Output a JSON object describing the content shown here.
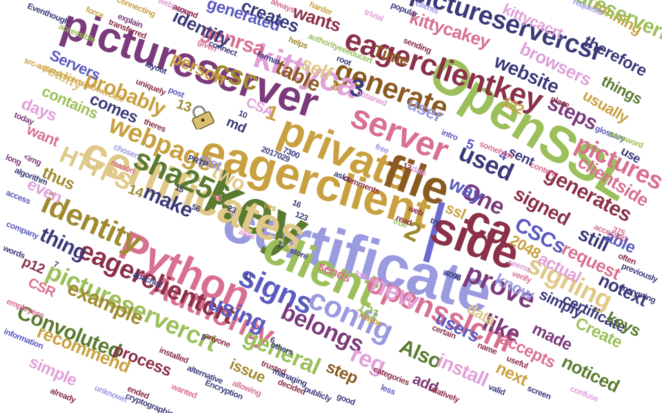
{
  "colors": {
    "purple": "#7b3a7b",
    "navy": "#3a3a7a",
    "green": "#9bbf5a",
    "olive": "#a08a30",
    "gold": "#c8a040",
    "tan": "#e0c888",
    "lavender": "#9a9ae0",
    "pink": "#e0a0d8",
    "rose": "#d87090",
    "maroon": "#8a3048",
    "darkgreen": "#5a7a30",
    "blue": "#5a5ac0",
    "brown": "#8a5a20"
  },
  "words": [
    {
      "t": "certificate",
      "c": "lavender"
    },
    {
      "t": "key",
      "c": "darkgreen"
    },
    {
      "t": "eagerclient",
      "c": "gold"
    },
    {
      "t": "certificates",
      "c": "tan"
    },
    {
      "t": "pictureserver",
      "c": "purple"
    },
    {
      "t": "OpenSSL",
      "c": "green"
    },
    {
      "t": "private",
      "c": "gold"
    },
    {
      "t": "file",
      "c": "brown"
    },
    {
      "t": "client",
      "c": "green"
    },
    {
      "t": "side",
      "c": "maroon"
    },
    {
      "t": "ca",
      "c": "maroon"
    },
    {
      "t": "server",
      "c": "rose"
    },
    {
      "t": "Python",
      "c": "rose"
    },
    {
      "t": "eagerclientkey",
      "c": "maroon"
    },
    {
      "t": "pictureservercsr",
      "c": "navy"
    },
    {
      "t": "generate",
      "c": "brown"
    },
    {
      "t": "sha256",
      "c": "darkgreen"
    },
    {
      "t": "kittyca",
      "c": "pink"
    },
    {
      "t": "identity",
      "c": "olive"
    },
    {
      "t": "csc",
      "c": "olive"
    },
    {
      "t": "Authority",
      "c": "rose"
    },
    {
      "t": "signs",
      "c": "blue"
    },
    {
      "t": "config",
      "c": "lavender"
    },
    {
      "t": "eagerclientcrt",
      "c": "maroon"
    },
    {
      "t": "pictureservercrt",
      "c": "green"
    },
    {
      "t": "opensslcnf",
      "c": "rose"
    },
    {
      "t": "prove",
      "c": "purple"
    },
    {
      "t": "signing",
      "c": "tan"
    },
    {
      "t": "webpage",
      "c": "gold"
    },
    {
      "t": "HTTPS",
      "c": "tan"
    },
    {
      "t": "genrsa",
      "c": "rose"
    },
    {
      "t": "generated",
      "c": "blue"
    },
    {
      "t": "kittycakey",
      "c": "rose"
    },
    {
      "t": "website",
      "c": "navy"
    },
    {
      "t": "probably",
      "c": "gold"
    },
    {
      "t": "example",
      "c": "olive"
    },
    {
      "t": "Convoluted",
      "c": "darkgreen"
    },
    {
      "t": "new",
      "c": "pink"
    },
    {
      "t": "used",
      "c": "navy"
    },
    {
      "t": "One",
      "c": "purple"
    },
    {
      "t": "belongs",
      "c": "purple"
    },
    {
      "t": "reg",
      "c": "pink"
    },
    {
      "t": "using",
      "c": "blue"
    },
    {
      "t": "general",
      "c": "green"
    },
    {
      "t": "Also",
      "c": "darkgreen"
    },
    {
      "t": "install",
      "c": "pink"
    },
    {
      "t": "pictures",
      "c": "rose"
    },
    {
      "t": "generates",
      "c": "maroon"
    },
    {
      "t": "steps",
      "c": "purple"
    },
    {
      "t": "usually",
      "c": "gold"
    },
    {
      "t": "table",
      "c": "brown"
    },
    {
      "t": "self",
      "c": "tan"
    },
    {
      "t": "wants",
      "c": "maroon"
    },
    {
      "t": "creates",
      "c": "navy"
    },
    {
      "t": "person",
      "c": "gold"
    },
    {
      "t": "identify",
      "c": "navy"
    },
    {
      "t": "Time",
      "c": "brown"
    },
    {
      "t": "user",
      "c": "lavender"
    },
    {
      "t": "things",
      "c": "darkgreen"
    },
    {
      "t": "therefore",
      "c": "navy"
    },
    {
      "t": "browsers",
      "c": "pink"
    },
    {
      "t": "running",
      "c": "gold"
    },
    {
      "t": "pictureserverkey",
      "c": "green"
    },
    {
      "t": "kittycacrt",
      "c": "pink"
    },
    {
      "t": "clientside",
      "c": "rose"
    },
    {
      "t": "signed",
      "c": "maroon"
    },
    {
      "t": "way",
      "c": "blue"
    },
    {
      "t": "CSCs",
      "c": "blue"
    },
    {
      "t": "still",
      "c": "navy"
    },
    {
      "t": "able",
      "c": "blue"
    },
    {
      "t": "request",
      "c": "rose"
    },
    {
      "t": "actual",
      "c": "pink"
    },
    {
      "t": "know",
      "c": "lavender"
    },
    {
      "t": "like",
      "c": "purple"
    },
    {
      "t": "certificate",
      "c": "navy"
    },
    {
      "t": "simply",
      "c": "navy"
    },
    {
      "t": "made",
      "c": "purple"
    },
    {
      "t": "Create",
      "c": "green"
    },
    {
      "t": "keys",
      "c": "darkgreen"
    },
    {
      "t": "notext",
      "c": "navy"
    },
    {
      "t": "accepts",
      "c": "rose"
    },
    {
      "t": "next",
      "c": "gold"
    },
    {
      "t": "noticed",
      "c": "darkgreen"
    },
    {
      "t": "users",
      "c": "blue"
    },
    {
      "t": "data",
      "c": "tan"
    },
    {
      "t": "add",
      "c": "purple"
    },
    {
      "t": "step",
      "c": "brown"
    },
    {
      "t": "issue",
      "c": "olive"
    },
    {
      "t": "process",
      "c": "maroon"
    },
    {
      "t": "recommend",
      "c": "gold"
    },
    {
      "t": "simple",
      "c": "pink"
    },
    {
      "t": "make",
      "c": "navy"
    },
    {
      "t": "two",
      "c": "tan"
    },
    {
      "t": "thing",
      "c": "navy"
    },
    {
      "t": "even",
      "c": "pink"
    },
    {
      "t": "thus",
      "c": "olive"
    },
    {
      "t": "want",
      "c": "rose"
    },
    {
      "t": "days",
      "c": "pink"
    },
    {
      "t": "contains",
      "c": "green"
    },
    {
      "t": "comes",
      "c": "navy"
    },
    {
      "t": "reality",
      "c": "tan"
    },
    {
      "t": "Servers",
      "c": "blue"
    },
    {
      "t": "CSR",
      "c": "rose"
    },
    {
      "t": "p12",
      "c": "maroon"
    },
    {
      "t": "sends",
      "c": "rose"
    },
    {
      "t": "gist",
      "c": "lavender"
    },
    {
      "t": "md",
      "c": "navy"
    },
    {
      "t": "CSA",
      "c": "pink"
    },
    {
      "t": "ssl",
      "c": "gold"
    },
    {
      "t": "use",
      "c": "navy"
    },
    {
      "t": "sent",
      "c": "navy"
    },
    {
      "t": "2048",
      "c": "gold"
    },
    {
      "t": "122",
      "c": "gold"
    },
    {
      "t": "121",
      "c": "green"
    },
    {
      "t": "1",
      "c": "gold"
    },
    {
      "t": "2",
      "c": "olive"
    },
    {
      "t": "3",
      "c": "navy"
    },
    {
      "t": "4",
      "c": "blue"
    },
    {
      "t": "5",
      "c": "blue"
    },
    {
      "t": "8",
      "c": "gold"
    },
    {
      "t": "13",
      "c": "olive"
    },
    {
      "t": "14",
      "c": "olive"
    },
    {
      "t": "Eventhough",
      "c": "navy"
    },
    {
      "t": "force",
      "c": "gold"
    },
    {
      "t": "explain",
      "c": "purple"
    },
    {
      "t": "transferred",
      "c": "maroon"
    },
    {
      "t": "webpages",
      "c": "pink"
    },
    {
      "t": "around",
      "c": "maroon"
    },
    {
      "t": "connecting",
      "c": "gold"
    },
    {
      "t": "given",
      "c": "rose"
    },
    {
      "t": "connect",
      "c": "navy"
    },
    {
      "t": "always",
      "c": "rose"
    },
    {
      "t": "harder",
      "c": "gold"
    },
    {
      "t": "helps",
      "c": "olive"
    },
    {
      "t": "popular",
      "c": "navy"
    },
    {
      "t": "trivial",
      "c": "pink"
    },
    {
      "t": "clients",
      "c": "lavender"
    },
    {
      "t": "sending",
      "c": "maroon"
    },
    {
      "t": "requests",
      "c": "lavender"
    },
    {
      "t": "authorityeeeducert",
      "c": "green"
    },
    {
      "t": "format",
      "c": "navy"
    },
    {
      "t": "root",
      "c": "navy"
    },
    {
      "t": "place",
      "c": "maroon"
    },
    {
      "t": "obtained",
      "c": "pink"
    },
    {
      "t": "glossary",
      "c": "blue"
    },
    {
      "t": "password",
      "c": "green"
    },
    {
      "t": "accessible",
      "c": "green"
    },
    {
      "t": "src-assetsimcertsislowercicle",
      "c": "gold"
    },
    {
      "t": "uniquely",
      "c": "maroon"
    },
    {
      "t": "post",
      "c": "blue"
    },
    {
      "t": "layout",
      "c": "navy"
    },
    {
      "t": "today",
      "c": "purple"
    },
    {
      "t": "theres",
      "c": "maroon"
    },
    {
      "t": "<img",
      "c": "purple"
    },
    {
      "t": "chosen",
      "c": "lavender"
    },
    {
      "t": "reason",
      "c": "rose"
    },
    {
      "t": "long",
      "c": "purple"
    },
    {
      "t": "algorithm",
      "c": "navy"
    },
    {
      "t": "access",
      "c": "blue"
    },
    {
      "t": "company",
      "c": "blue"
    },
    {
      "t": "words",
      "c": "navy"
    },
    {
      "t": "employees",
      "c": "rose"
    },
    {
      "t": "information",
      "c": "blue"
    },
    {
      "t": "already",
      "c": "maroon"
    },
    {
      "t": "unknown",
      "c": "lavender"
    },
    {
      "t": "ended",
      "c": "maroon"
    },
    {
      "t": "cryptographic",
      "c": "navy"
    },
    {
      "t": "wanted",
      "c": "rose"
    },
    {
      "t": "Encryption",
      "c": "navy"
    },
    {
      "t": "allowing",
      "c": "rose"
    },
    {
      "t": "decided",
      "c": "maroon"
    },
    {
      "t": "publicly",
      "c": "navy"
    },
    {
      "t": "good",
      "c": "navy"
    },
    {
      "t": "less",
      "c": "blue"
    },
    {
      "t": "relatively",
      "c": "maroon"
    },
    {
      "t": "valid",
      "c": "navy"
    },
    {
      "t": "screen",
      "c": "navy"
    },
    {
      "t": "confuse",
      "c": "pink"
    },
    {
      "t": "somehow",
      "c": "rose"
    },
    {
      "t": "intro",
      "c": "blue"
    },
    {
      "t": "375",
      "c": "rose"
    },
    {
      "t": "often",
      "c": "maroon"
    },
    {
      "t": "encrypting",
      "c": "navy"
    },
    {
      "t": "previously",
      "c": "navy"
    },
    {
      "t": "accessed",
      "c": "rose"
    },
    {
      "t": "content",
      "c": "rose"
    },
    {
      "t": "seems",
      "c": "pink"
    },
    {
      "t": "verify",
      "c": "rose"
    },
    {
      "t": "4096",
      "c": "navy"
    },
    {
      "t": "name",
      "c": "maroon"
    },
    {
      "t": "useful",
      "c": "maroon"
    },
    {
      "t": "alternative",
      "c": "navy"
    },
    {
      "t": "apache2",
      "c": "navy"
    },
    {
      "t": "installed",
      "c": "maroon"
    },
    {
      "t": "trusted",
      "c": "maroon"
    },
    {
      "t": "managing",
      "c": "navy"
    },
    {
      "t": "categories",
      "c": "maroon"
    },
    {
      "t": "Maybe",
      "c": "gold"
    },
    {
      "t": "web",
      "c": "maroon"
    },
    {
      "t": "read",
      "c": "maroon"
    },
    {
      "t": "store",
      "c": "navy"
    },
    {
      "t": "asks",
      "c": "navy"
    },
    {
      "t": "comments",
      "c": "maroon"
    },
    {
      "t": "2017029",
      "c": "navy"
    },
    {
      "t": "7300",
      "c": "navy"
    },
    {
      "t": "16",
      "c": "navy"
    },
    {
      "t": "123",
      "c": "navy"
    },
    {
      "t": "15",
      "c": "navy"
    },
    {
      "t": "56",
      "c": "navy"
    },
    {
      "t": "17",
      "c": "navy"
    },
    {
      "t": "12",
      "c": "maroon"
    },
    {
      "t": "10",
      "c": "navy"
    },
    {
      "t": "9",
      "c": "navy"
    },
    {
      "t": "6",
      "c": "navy"
    },
    {
      "t": "7",
      "c": "navy"
    },
    {
      "t": "11",
      "c": "navy"
    },
    {
      "t": "23",
      "c": "navy"
    },
    {
      "t": "yes",
      "c": "gold"
    },
    {
      "t": "date",
      "c": "pink"
    },
    {
      "t": "true",
      "c": "green"
    },
    {
      "t": "try",
      "c": "navy"
    },
    {
      "t": "others",
      "c": "navy"
    },
    {
      "t": "certain",
      "c": "maroon"
    },
    {
      "t": "anyone",
      "c": "maroon"
    },
    {
      "t": "follow",
      "c": "pink"
    },
    {
      "t": "free",
      "c": "lavender"
    },
    {
      "t": "PRTP",
      "c": "navy"
    },
    {
      "t": "<b",
      "c": "rose"
    },
    {
      "t": "alias",
      "c": "pink"
    }
  ]
}
